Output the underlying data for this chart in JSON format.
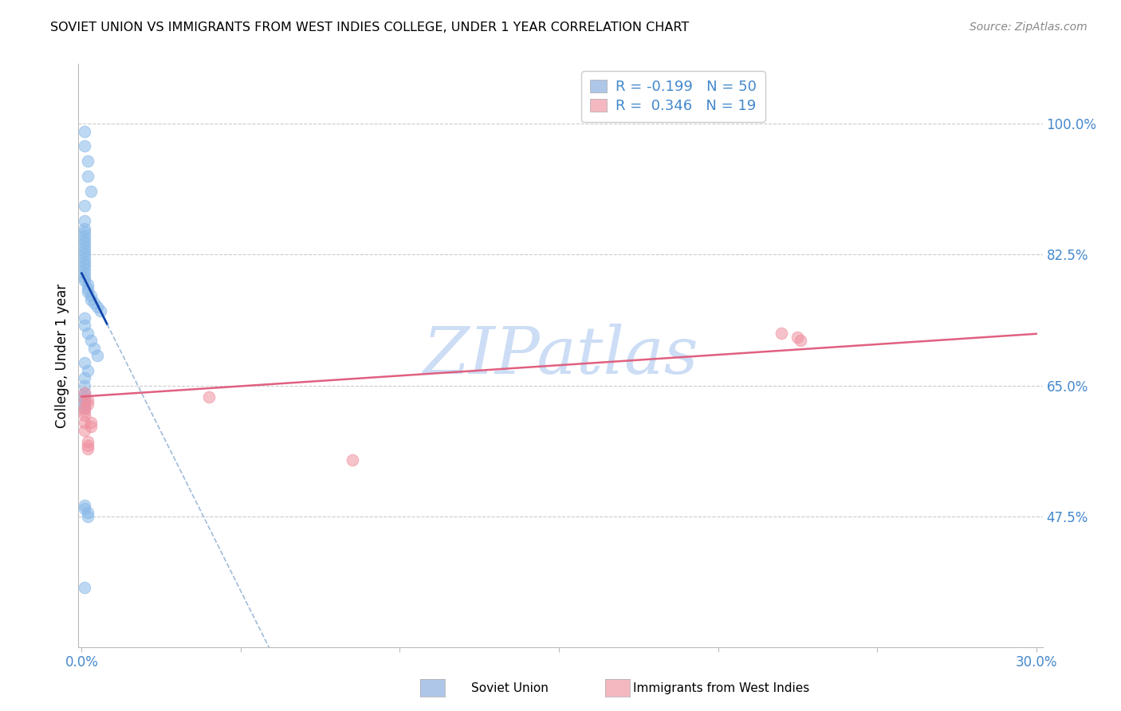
{
  "title": "SOVIET UNION VS IMMIGRANTS FROM WEST INDIES COLLEGE, UNDER 1 YEAR CORRELATION CHART",
  "source": "Source: ZipAtlas.com",
  "ylabel": "College, Under 1 year",
  "y_ticks": [
    "100.0%",
    "82.5%",
    "65.0%",
    "47.5%"
  ],
  "y_tick_values": [
    1.0,
    0.825,
    0.65,
    0.475
  ],
  "xlim": [
    -0.001,
    0.302
  ],
  "ylim": [
    0.3,
    1.08
  ],
  "legend_label1": "R = -0.199   N = 50",
  "legend_label2": "R =  0.346   N = 19",
  "legend_color1": "#aec6e8",
  "legend_color2": "#f4b8c1",
  "dot_color1": "#88b8e8",
  "dot_color2": "#f090a0",
  "line_color1_solid": "#1144aa",
  "line_color1_dashed": "#88aad0",
  "line_color2": "#e06080",
  "watermark": "ZIPatlas",
  "watermark_color": "#ccddf5",
  "su_x": [
    0.001,
    0.001,
    0.002,
    0.002,
    0.003,
    0.001,
    0.001,
    0.001,
    0.001,
    0.001,
    0.001,
    0.001,
    0.001,
    0.001,
    0.001,
    0.001,
    0.001,
    0.001,
    0.001,
    0.001,
    0.001,
    0.001,
    0.002,
    0.002,
    0.002,
    0.003,
    0.003,
    0.004,
    0.005,
    0.006,
    0.001,
    0.001,
    0.002,
    0.003,
    0.004,
    0.005,
    0.001,
    0.002,
    0.001,
    0.001,
    0.001,
    0.001,
    0.002,
    0.002,
    0.001,
    0.001,
    0.001,
    0.001,
    0.001,
    0.001
  ],
  "su_y": [
    0.99,
    0.97,
    0.95,
    0.93,
    0.91,
    0.89,
    0.87,
    0.86,
    0.855,
    0.85,
    0.845,
    0.84,
    0.835,
    0.83,
    0.825,
    0.82,
    0.815,
    0.81,
    0.805,
    0.8,
    0.795,
    0.79,
    0.785,
    0.78,
    0.775,
    0.77,
    0.765,
    0.76,
    0.755,
    0.75,
    0.74,
    0.73,
    0.72,
    0.71,
    0.7,
    0.69,
    0.68,
    0.67,
    0.66,
    0.65,
    0.49,
    0.485,
    0.48,
    0.475,
    0.64,
    0.635,
    0.63,
    0.625,
    0.62,
    0.38
  ],
  "wi_x": [
    0.001,
    0.001,
    0.001,
    0.001,
    0.001,
    0.001,
    0.001,
    0.002,
    0.002,
    0.002,
    0.002,
    0.002,
    0.003,
    0.003,
    0.04,
    0.085,
    0.22,
    0.225,
    0.226
  ],
  "wi_y": [
    0.64,
    0.63,
    0.62,
    0.615,
    0.61,
    0.6,
    0.59,
    0.63,
    0.625,
    0.575,
    0.57,
    0.565,
    0.6,
    0.595,
    0.635,
    0.55,
    0.72,
    0.715,
    0.71
  ],
  "su_line_x0": 0.0,
  "su_line_x_solid_end": 0.008,
  "su_line_x_dashed_end": 0.3,
  "su_line_y0": 0.8,
  "su_line_slope": -8.5,
  "wi_line_x0": 0.0,
  "wi_line_x_end": 0.3,
  "wi_line_y0": 0.635,
  "wi_line_slope": 0.28
}
